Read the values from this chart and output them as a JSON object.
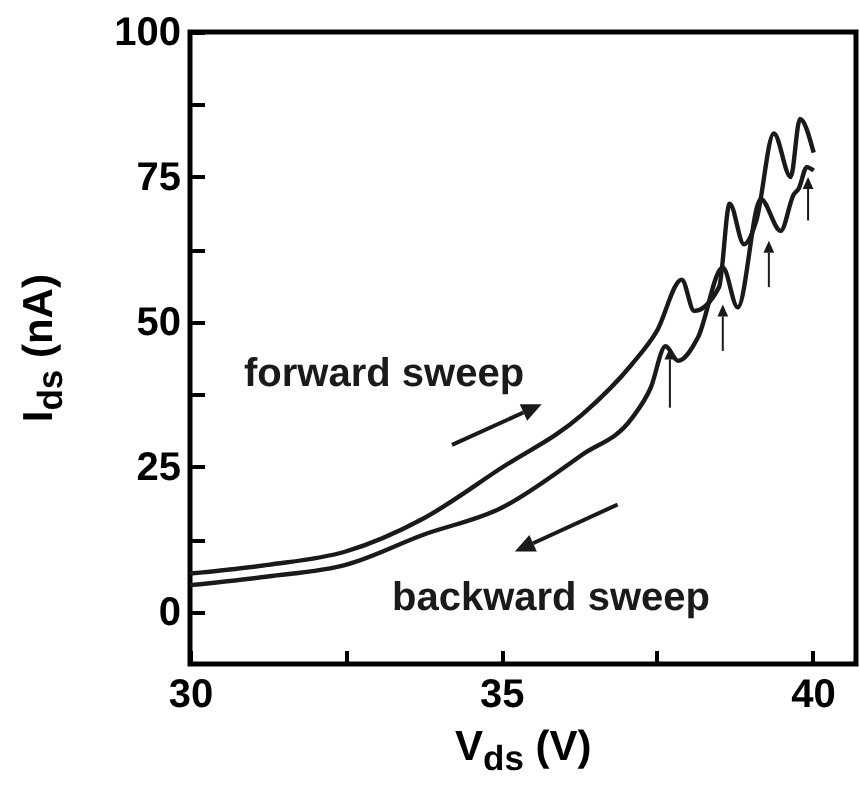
{
  "chart_data": {
    "type": "line",
    "xlabel": "V$_{ds}$ (V)",
    "ylabel": "I$_{ds}$ (nA)",
    "xlim": [
      30,
      40.7
    ],
    "ylim": [
      -9,
      100
    ],
    "xticks": [
      30,
      {
        "value": 32.5,
        "label": null
      },
      35,
      {
        "value": 37.5,
        "label": null
      },
      40
    ],
    "yticks": [
      0,
      {
        "value": 12.5,
        "label": null
      },
      25,
      {
        "value": 37.5,
        "label": null
      },
      50,
      {
        "value": 62.5,
        "label": null
      },
      75,
      {
        "value": 87.5,
        "label": null
      },
      100
    ],
    "annotations": [
      "forward sweep",
      "backward sweep"
    ],
    "series": [
      {
        "color": "#1a1a1a",
        "x": [
          30,
          31.25,
          32.5,
          33.75,
          35,
          36.3,
          37.1,
          37.5,
          37.9,
          38.1,
          38.5,
          38.67,
          38.9,
          39.1,
          39.38,
          39.65,
          39.8,
          40.02
        ],
        "values": [
          6.6,
          8.1,
          10.4,
          16.1,
          24.8,
          34,
          42.7,
          48.4,
          57.3,
          51.9,
          56,
          70.4,
          63.4,
          67.5,
          82.5,
          75,
          85,
          79.2
        ]
      },
      {
        "color": "#1a1a1a",
        "x": [
          30,
          31.25,
          32.5,
          33.75,
          35,
          36.3,
          37.1,
          37.4,
          37.64,
          37.84,
          38.16,
          38.56,
          38.8,
          39.17,
          39.49,
          39.7,
          39.78,
          39.91,
          40.02
        ],
        "values": [
          4.6,
          6.1,
          8.1,
          13.3,
          17.9,
          27.1,
          33.4,
          38.6,
          45.8,
          43.3,
          47.3,
          59.4,
          52.5,
          71.2,
          65.7,
          72,
          73,
          76.7,
          76.1
        ]
      }
    ]
  }
}
